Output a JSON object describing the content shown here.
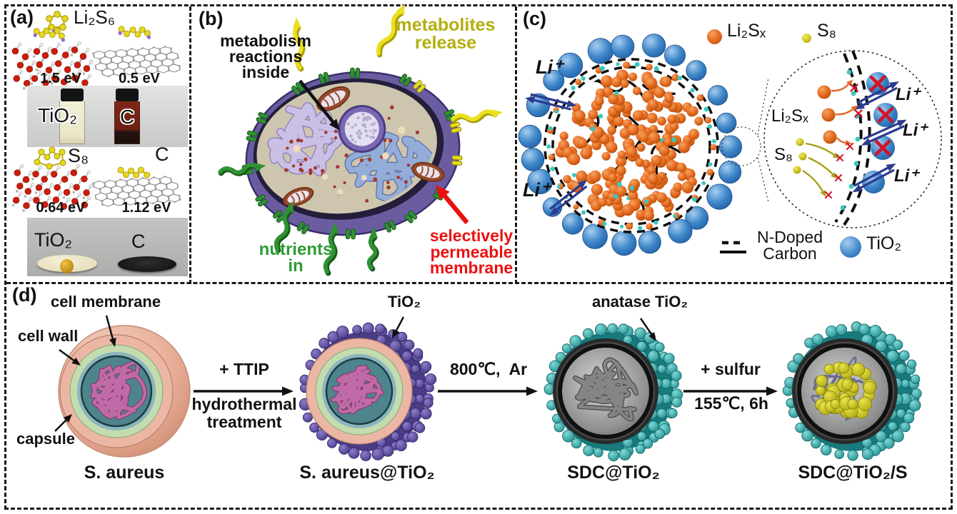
{
  "figure": {
    "panel_a": {
      "label": "(a)",
      "top": {
        "molecule": "Li₂S₆",
        "ev_left": "1.5 eV",
        "ev_right": "0.5 eV",
        "vial_left": "TiO₂",
        "vial_right": "C"
      },
      "bottom": {
        "molecule": "S₈",
        "substrate": "C",
        "ev_left": "0.64 eV",
        "ev_right": "1.12 eV",
        "disc_left": "TiO₂",
        "disc_right": "C"
      }
    },
    "panel_b": {
      "label": "(b)",
      "metabolism": "metabolism\nreactions\ninside",
      "metabolites": "metabolites\nrelease",
      "nutrients": "nutrients\nin",
      "membrane": "selectively\npermeable\nmembrane"
    },
    "panel_c": {
      "label": "(c)",
      "legend_li2sx": "Li₂Sₓ",
      "legend_s8": "S₈",
      "li_ion": "Li⁺",
      "inset_li2sx": "Li₂Sₓ",
      "inset_s8": "S₈",
      "ndc": "N-Doped\nCarbon",
      "tio2": "TiO₂"
    },
    "panel_d": {
      "label": "(d)",
      "callouts": {
        "cell_membrane": "cell membrane",
        "cell_wall": "cell wall",
        "capsule": "capsule",
        "tio2": "TiO₂",
        "anatase": "anatase TiO₂"
      },
      "steps": {
        "s1": "S. aureus",
        "s2": "S. aureus@TiO₂",
        "s3": "SDC@TiO₂",
        "s4": "SDC@TiO₂/S"
      },
      "arrow1": {
        "top": "+ TTIP",
        "bottom": "hydrothermal\ntreatment"
      },
      "arrow2": {
        "top": "800℃,  Ar"
      },
      "arrow3": {
        "top": "+ sulfur",
        "bottom": "155℃, 6h"
      }
    },
    "colors": {
      "li2sx_orange": "#e2671d",
      "s8_yellow": "#cdc11c",
      "tio2_blue": "#3f87c9",
      "li_arrow_navy": "#2c3a8e",
      "blocked_red": "#d21425",
      "metabolites_olive": "#b3ae10",
      "nutrients_green": "#2d9c35",
      "membrane_label_red": "#ee1111",
      "tio2_coat_purple": "#584a9c",
      "anatase_teal": "#2fa9ab",
      "sulfur_yellow": "#c9c31f",
      "capsule_pink": "#edb4a4",
      "cell_wall_green": "#c3dcaf",
      "cell_membrane_teal": "#7fb3bb"
    }
  }
}
